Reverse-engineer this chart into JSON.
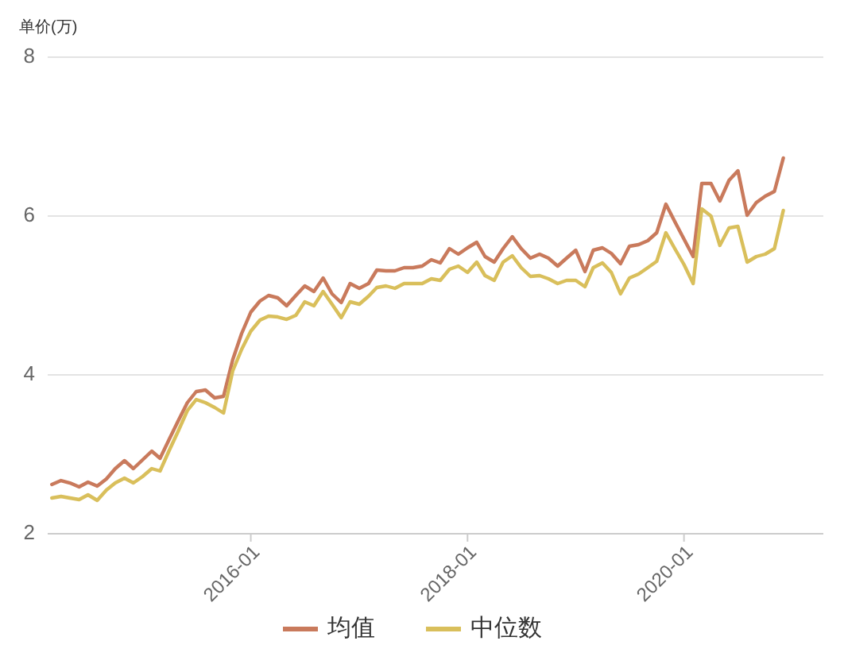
{
  "chart_data": {
    "type": "line",
    "ylabel": "单价(万)",
    "xlim": [
      "2014-02-15",
      "2021-04-15"
    ],
    "xticks": [
      "2016-01",
      "2018-01",
      "2020-01"
    ],
    "ylim": [
      2,
      8
    ],
    "yticks": [
      2,
      4,
      6,
      8
    ],
    "grid": "y",
    "legend": "bottom",
    "marker": "none",
    "line_style": "solid",
    "x": [
      "2014-03",
      "2014-04",
      "2014-05",
      "2014-06",
      "2014-07",
      "2014-08",
      "2014-09",
      "2014-10",
      "2014-11",
      "2014-12",
      "2015-01",
      "2015-02",
      "2015-03",
      "2015-04",
      "2015-05",
      "2015-06",
      "2015-07",
      "2015-08",
      "2015-09",
      "2015-10",
      "2015-11",
      "2015-12",
      "2016-01",
      "2016-02",
      "2016-03",
      "2016-04",
      "2016-05",
      "2016-06",
      "2016-07",
      "2016-08",
      "2016-09",
      "2016-10",
      "2016-11",
      "2016-12",
      "2017-01",
      "2017-02",
      "2017-03",
      "2017-04",
      "2017-05",
      "2017-06",
      "2017-07",
      "2017-08",
      "2017-09",
      "2017-10",
      "2017-11",
      "2017-12",
      "2018-01",
      "2018-02",
      "2018-03",
      "2018-04",
      "2018-05",
      "2018-06",
      "2018-07",
      "2018-08",
      "2018-09",
      "2018-10",
      "2018-11",
      "2018-12",
      "2019-01",
      "2019-02",
      "2019-03",
      "2019-04",
      "2019-05",
      "2019-06",
      "2019-07",
      "2019-08",
      "2019-09",
      "2019-10",
      "2019-11",
      "2019-12",
      "2020-01",
      "2020-02",
      "2020-03",
      "2020-04",
      "2020-05",
      "2020-06",
      "2020-07",
      "2020-08",
      "2020-09",
      "2020-10",
      "2020-11",
      "2020-12"
    ],
    "series": [
      {
        "name": "均值",
        "color": "#c97a5c",
        "values": [
          2.62,
          2.67,
          2.64,
          2.59,
          2.65,
          2.6,
          2.69,
          2.82,
          2.92,
          2.82,
          2.93,
          3.04,
          2.95,
          3.19,
          3.42,
          3.65,
          3.79,
          3.81,
          3.71,
          3.73,
          4.19,
          4.52,
          4.79,
          4.93,
          5.0,
          4.97,
          4.87,
          5.0,
          5.12,
          5.05,
          5.22,
          5.02,
          4.91,
          5.15,
          5.09,
          5.15,
          5.32,
          5.31,
          5.31,
          5.35,
          5.35,
          5.37,
          5.45,
          5.41,
          5.59,
          5.52,
          5.6,
          5.67,
          5.49,
          5.42,
          5.59,
          5.74,
          5.59,
          5.47,
          5.52,
          5.47,
          5.37,
          5.47,
          5.57,
          5.3,
          5.57,
          5.6,
          5.53,
          5.4,
          5.62,
          5.64,
          5.69,
          5.79,
          6.15,
          5.93,
          5.71,
          5.49,
          6.41,
          6.41,
          6.19,
          6.45,
          6.57,
          6.01,
          6.17,
          6.25,
          6.31,
          6.73
        ]
      },
      {
        "name": "中位数",
        "color": "#d9bf5b",
        "values": [
          2.45,
          2.47,
          2.45,
          2.43,
          2.49,
          2.42,
          2.55,
          2.64,
          2.7,
          2.64,
          2.72,
          2.82,
          2.79,
          3.05,
          3.29,
          3.55,
          3.69,
          3.65,
          3.59,
          3.52,
          4.05,
          4.32,
          4.55,
          4.69,
          4.74,
          4.73,
          4.7,
          4.75,
          4.92,
          4.87,
          5.05,
          4.89,
          4.72,
          4.92,
          4.89,
          4.99,
          5.1,
          5.12,
          5.09,
          5.15,
          5.15,
          5.15,
          5.21,
          5.19,
          5.33,
          5.37,
          5.29,
          5.42,
          5.25,
          5.19,
          5.42,
          5.5,
          5.35,
          5.24,
          5.25,
          5.21,
          5.15,
          5.19,
          5.19,
          5.11,
          5.35,
          5.41,
          5.29,
          5.02,
          5.22,
          5.27,
          5.35,
          5.43,
          5.79,
          5.59,
          5.39,
          5.15,
          6.09,
          6.0,
          5.63,
          5.85,
          5.87,
          5.42,
          5.49,
          5.52,
          5.59,
          6.07
        ]
      }
    ]
  }
}
